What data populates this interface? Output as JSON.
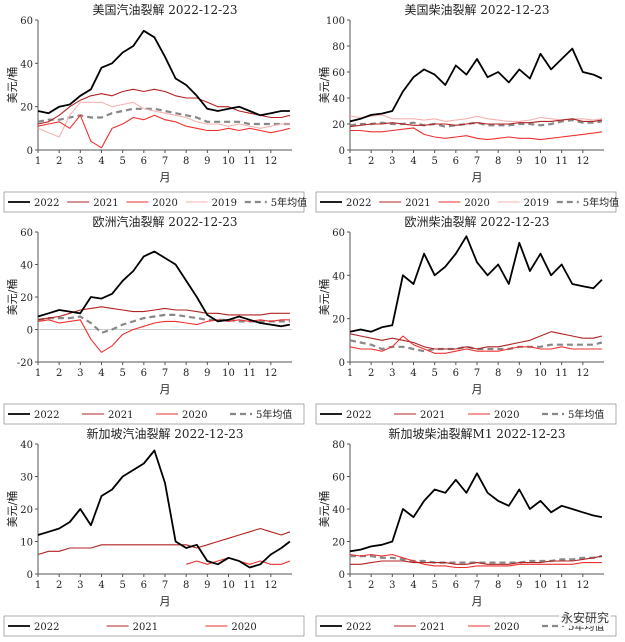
{
  "watermark": "永安研究",
  "chart_data": [
    {
      "type": "line",
      "title": "美国汽油裂解 2022-12-23",
      "ylabel": "美元/桶",
      "xlabel": "月",
      "ylim": [
        0,
        60
      ],
      "yticks": [
        0,
        20,
        40,
        60
      ],
      "xticks": [
        "1",
        "2",
        "3",
        "4",
        "5",
        "6",
        "7",
        "8",
        "9",
        "10",
        "11",
        "12"
      ],
      "x": [
        1,
        1.5,
        2,
        2.5,
        3,
        3.5,
        4,
        4.5,
        5,
        5.5,
        6,
        6.5,
        7,
        7.5,
        8,
        8.5,
        9,
        9.5,
        10,
        10.5,
        11,
        11.5,
        12,
        12.5,
        12.9
      ],
      "series": [
        {
          "name": "2022",
          "color": "#000000",
          "width": 1.8,
          "dash": "",
          "values": [
            18,
            17,
            20,
            21,
            25,
            28,
            38,
            40,
            45,
            48,
            55,
            52,
            43,
            33,
            30,
            25,
            19,
            18,
            19,
            20,
            18,
            16,
            17,
            18,
            18
          ]
        },
        {
          "name": "2021",
          "color": "#b22222",
          "width": 1.1,
          "dash": "",
          "values": [
            12,
            13,
            16,
            20,
            23,
            25,
            26,
            25,
            27,
            28,
            27,
            28,
            27,
            25,
            24,
            24,
            22,
            20,
            20,
            18,
            17,
            16,
            15,
            15,
            16
          ]
        },
        {
          "name": "2020",
          "color": "#ef3030",
          "width": 1.1,
          "dash": "",
          "values": [
            11,
            12,
            13,
            10,
            16,
            4,
            1,
            10,
            12,
            15,
            14,
            16,
            14,
            13,
            11,
            10,
            9,
            9,
            10,
            9,
            10,
            9,
            8,
            9,
            10
          ]
        },
        {
          "name": "2019",
          "color": "#f6b2b2",
          "width": 1.1,
          "dash": "",
          "values": [
            10,
            8,
            6,
            16,
            22,
            22,
            22,
            20,
            21,
            22,
            19,
            18,
            17,
            16,
            15,
            13,
            12,
            12,
            11,
            12,
            11,
            10,
            11,
            12,
            12
          ]
        },
        {
          "name": "5年均值",
          "color": "#888888",
          "width": 2.2,
          "dash": "6,4",
          "values": [
            13,
            14,
            14,
            15,
            16,
            15,
            15,
            17,
            18,
            19,
            19,
            19,
            18,
            17,
            16,
            15,
            13,
            13,
            13,
            13,
            12,
            12,
            12,
            12,
            12
          ]
        }
      ]
    },
    {
      "type": "line",
      "title": "美国柴油裂解 2022-12-23",
      "ylabel": "美元/桶",
      "xlabel": "月",
      "ylim": [
        0,
        100
      ],
      "yticks": [
        0,
        20,
        40,
        60,
        80,
        100
      ],
      "xticks": [
        "1",
        "2",
        "3",
        "4",
        "5",
        "6",
        "7",
        "8",
        "9",
        "10",
        "11",
        "12"
      ],
      "x": [
        1,
        1.5,
        2,
        2.5,
        3,
        3.5,
        4,
        4.5,
        5,
        5.5,
        6,
        6.5,
        7,
        7.5,
        8,
        8.5,
        9,
        9.5,
        10,
        10.5,
        11,
        11.5,
        12,
        12.5,
        12.9
      ],
      "series": [
        {
          "name": "2022",
          "color": "#000000",
          "width": 1.8,
          "dash": "",
          "values": [
            22,
            24,
            27,
            28,
            30,
            45,
            56,
            62,
            58,
            50,
            65,
            58,
            70,
            56,
            60,
            52,
            62,
            55,
            74,
            62,
            70,
            78,
            60,
            58,
            55
          ]
        },
        {
          "name": "2021",
          "color": "#b22222",
          "width": 1.1,
          "dash": "",
          "values": [
            18,
            19,
            20,
            20,
            21,
            20,
            19,
            19,
            20,
            20,
            19,
            20,
            21,
            20,
            20,
            20,
            21,
            21,
            22,
            22,
            23,
            24,
            22,
            22,
            23
          ]
        },
        {
          "name": "2020",
          "color": "#ef3030",
          "width": 1.1,
          "dash": "",
          "values": [
            15,
            15,
            14,
            14,
            15,
            16,
            17,
            12,
            10,
            9,
            10,
            11,
            9,
            8,
            9,
            10,
            9,
            9,
            8,
            9,
            10,
            11,
            12,
            13,
            14
          ]
        },
        {
          "name": "2019",
          "color": "#f6b2b2",
          "width": 1.1,
          "dash": "",
          "values": [
            26,
            25,
            26,
            27,
            24,
            24,
            24,
            23,
            24,
            22,
            23,
            24,
            26,
            24,
            23,
            22,
            22,
            23,
            25,
            24,
            23,
            24,
            24,
            23,
            24
          ]
        },
        {
          "name": "5年均值",
          "color": "#888888",
          "width": 2.2,
          "dash": "6,4",
          "values": [
            19,
            20,
            20,
            21,
            20,
            20,
            21,
            19,
            20,
            18,
            19,
            20,
            21,
            19,
            19,
            19,
            20,
            20,
            19,
            20,
            22,
            23,
            21,
            21,
            22
          ]
        }
      ]
    },
    {
      "type": "line",
      "title": "欧洲汽油裂解 2022-12-23",
      "ylabel": "美元/桶",
      "xlabel": "月",
      "ylim": [
        -20,
        60
      ],
      "yticks": [
        -20,
        0,
        20,
        40,
        60
      ],
      "xticks": [
        "1",
        "2",
        "3",
        "4",
        "5",
        "6",
        "7",
        "8",
        "9",
        "10",
        "11",
        "12"
      ],
      "x": [
        1,
        1.5,
        2,
        2.5,
        3,
        3.5,
        4,
        4.5,
        5,
        5.5,
        6,
        6.5,
        7,
        7.5,
        8,
        8.5,
        9,
        9.5,
        10,
        10.5,
        11,
        11.5,
        12,
        12.5,
        12.9
      ],
      "series": [
        {
          "name": "2022",
          "color": "#000000",
          "width": 1.8,
          "dash": "",
          "values": [
            8,
            10,
            12,
            11,
            10,
            20,
            19,
            22,
            30,
            36,
            45,
            48,
            44,
            40,
            30,
            20,
            9,
            5,
            6,
            8,
            6,
            4,
            3,
            2,
            3
          ]
        },
        {
          "name": "2021",
          "color": "#b22222",
          "width": 1.1,
          "dash": "",
          "values": [
            6,
            7,
            8,
            10,
            12,
            13,
            14,
            13,
            12,
            11,
            11,
            12,
            13,
            12,
            12,
            11,
            10,
            10,
            9,
            9,
            9,
            9,
            10,
            10,
            10
          ]
        },
        {
          "name": "2020",
          "color": "#ef3030",
          "width": 1.1,
          "dash": "",
          "values": [
            5,
            6,
            4,
            5,
            6,
            -6,
            -14,
            -10,
            -3,
            0,
            2,
            4,
            5,
            5,
            4,
            3,
            5,
            6,
            5,
            6,
            5,
            6,
            5,
            6,
            6
          ]
        },
        {
          "name": "5年均值",
          "color": "#888888",
          "width": 2.2,
          "dash": "6,4",
          "values": [
            6,
            7,
            7,
            7,
            8,
            4,
            -2,
            0,
            3,
            5,
            7,
            8,
            9,
            9,
            8,
            7,
            6,
            6,
            6,
            5,
            5,
            5,
            5,
            5,
            5
          ]
        }
      ]
    },
    {
      "type": "line",
      "title": "欧洲柴油裂解 2022-12-23",
      "ylabel": "美元/桶",
      "xlabel": "月",
      "ylim": [
        0,
        60
      ],
      "yticks": [
        0,
        20,
        40,
        60
      ],
      "xticks": [
        "1",
        "2",
        "3",
        "4",
        "5",
        "6",
        "7",
        "8",
        "9",
        "10",
        "11",
        "12"
      ],
      "x": [
        1,
        1.5,
        2,
        2.5,
        3,
        3.5,
        4,
        4.5,
        5,
        5.5,
        6,
        6.5,
        7,
        7.5,
        8,
        8.5,
        9,
        9.5,
        10,
        10.5,
        11,
        11.5,
        12,
        12.5,
        12.9
      ],
      "series": [
        {
          "name": "2022",
          "color": "#000000",
          "width": 1.8,
          "dash": "",
          "values": [
            14,
            15,
            14,
            16,
            17,
            40,
            36,
            50,
            40,
            44,
            50,
            58,
            46,
            40,
            45,
            36,
            55,
            42,
            50,
            40,
            45,
            36,
            35,
            34,
            38
          ]
        },
        {
          "name": "2021",
          "color": "#b22222",
          "width": 1.1,
          "dash": "",
          "values": [
            13,
            12,
            11,
            10,
            11,
            10,
            9,
            7,
            6,
            6,
            6,
            7,
            6,
            7,
            7,
            8,
            9,
            10,
            12,
            14,
            13,
            12,
            11,
            11,
            12
          ]
        },
        {
          "name": "2020",
          "color": "#ef3030",
          "width": 1.1,
          "dash": "",
          "values": [
            7,
            6,
            6,
            5,
            7,
            12,
            8,
            6,
            4,
            4,
            5,
            6,
            5,
            5,
            5,
            6,
            7,
            7,
            6,
            6,
            7,
            6,
            6,
            6,
            6
          ]
        },
        {
          "name": "5年均值",
          "color": "#888888",
          "width": 2.2,
          "dash": "6,4",
          "values": [
            10,
            9,
            8,
            6,
            7,
            7,
            6,
            5,
            6,
            6,
            6,
            7,
            6,
            6,
            6,
            6,
            7,
            7,
            7,
            8,
            8,
            8,
            8,
            8,
            9
          ]
        }
      ]
    },
    {
      "type": "line",
      "title": "新加坡汽油裂解 2022-12-23",
      "ylabel": "美元/桶",
      "xlabel": "月",
      "ylim": [
        0,
        40
      ],
      "yticks": [
        0,
        10,
        20,
        30,
        40
      ],
      "xticks": [
        "1",
        "2",
        "3",
        "4",
        "5",
        "6",
        "7",
        "8",
        "9",
        "10",
        "11",
        "12"
      ],
      "x": [
        1,
        1.5,
        2,
        2.5,
        3,
        3.5,
        4,
        4.5,
        5,
        5.5,
        6,
        6.5,
        7,
        7.5,
        8,
        8.5,
        9,
        9.5,
        10,
        10.5,
        11,
        11.5,
        12,
        12.5,
        12.9
      ],
      "series": [
        {
          "name": "2022",
          "color": "#000000",
          "width": 1.8,
          "dash": "",
          "values": [
            12,
            13,
            14,
            16,
            20,
            15,
            24,
            26,
            30,
            32,
            34,
            38,
            28,
            10,
            8,
            9,
            4,
            3,
            5,
            4,
            2,
            3,
            6,
            8,
            10
          ]
        },
        {
          "name": "2021",
          "color": "#b22222",
          "width": 1.1,
          "dash": "",
          "values": [
            6,
            7,
            7,
            8,
            8,
            8,
            9,
            9,
            9,
            9,
            9,
            9,
            9,
            9,
            9,
            8,
            9,
            10,
            11,
            12,
            13,
            14,
            13,
            12,
            13
          ]
        },
        {
          "name": "2020",
          "color": "#ef3030",
          "width": 1.1,
          "dash": "",
          "values": [
            null,
            null,
            null,
            null,
            null,
            null,
            null,
            null,
            null,
            null,
            null,
            null,
            null,
            null,
            3,
            4,
            3,
            4,
            5,
            4,
            3,
            4,
            3,
            3,
            4
          ]
        }
      ]
    },
    {
      "type": "line",
      "title": "新加坡柴油裂解M1 2022-12-23",
      "ylabel": "美元/桶",
      "xlabel": "月",
      "ylim": [
        0,
        80
      ],
      "yticks": [
        0,
        20,
        40,
        60,
        80
      ],
      "xticks": [
        "1",
        "2",
        "3",
        "4",
        "5",
        "6",
        "7",
        "8",
        "9",
        "10",
        "11",
        "12"
      ],
      "x": [
        1,
        1.5,
        2,
        2.5,
        3,
        3.5,
        4,
        4.5,
        5,
        5.5,
        6,
        6.5,
        7,
        7.5,
        8,
        8.5,
        9,
        9.5,
        10,
        10.5,
        11,
        11.5,
        12,
        12.5,
        12.9
      ],
      "series": [
        {
          "name": "2022",
          "color": "#000000",
          "width": 1.8,
          "dash": "",
          "values": [
            14,
            15,
            17,
            18,
            20,
            40,
            35,
            45,
            52,
            50,
            58,
            50,
            62,
            50,
            45,
            42,
            52,
            40,
            45,
            38,
            42,
            40,
            38,
            36,
            35
          ]
        },
        {
          "name": "2021",
          "color": "#b22222",
          "width": 1.1,
          "dash": "",
          "values": [
            6,
            6,
            7,
            8,
            8,
            8,
            7,
            7,
            7,
            7,
            6,
            6,
            7,
            6,
            6,
            6,
            7,
            7,
            7,
            8,
            8,
            8,
            9,
            10,
            11
          ]
        },
        {
          "name": "2020",
          "color": "#ef3030",
          "width": 1.1,
          "dash": "",
          "values": [
            12,
            11,
            12,
            11,
            12,
            10,
            8,
            6,
            5,
            5,
            4,
            4,
            5,
            5,
            5,
            5,
            6,
            6,
            6,
            6,
            6,
            6,
            7,
            7,
            7
          ]
        },
        {
          "name": "5年均值",
          "color": "#888888",
          "width": 2.2,
          "dash": "6,4",
          "values": [
            11,
            11,
            11,
            10,
            10,
            9,
            8,
            8,
            7,
            7,
            7,
            7,
            7,
            7,
            7,
            7,
            7,
            8,
            8,
            8,
            9,
            9,
            10,
            10,
            11
          ]
        }
      ]
    }
  ]
}
